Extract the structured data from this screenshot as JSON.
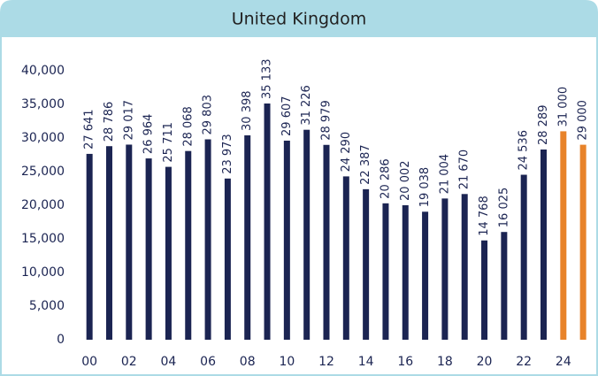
{
  "chart_data": {
    "type": "bar",
    "title": "United Kingdom",
    "categories": [
      "00",
      null,
      "02",
      null,
      "04",
      null,
      "06",
      null,
      "08",
      null,
      "10",
      null,
      "12",
      null,
      "14",
      null,
      "16",
      null,
      "18",
      null,
      "20",
      null,
      "22",
      null,
      "24",
      null
    ],
    "values": [
      27641,
      28786,
      29017,
      26964,
      25711,
      28068,
      29803,
      23973,
      30398,
      35133,
      29607,
      31226,
      28979,
      24290,
      22387,
      20286,
      20002,
      19038,
      21004,
      21670,
      14768,
      16025,
      24536,
      28289,
      31000,
      29000
    ],
    "value_labels": [
      "27 641",
      "28 786",
      "29 017",
      "26 964",
      "25 711",
      "28 068",
      "29 803",
      "23 973",
      "30 398",
      "35 133",
      "29 607",
      "31 226",
      "28 979",
      "24 290",
      "22 387",
      "20 286",
      "20 002",
      "19 038",
      "21 004",
      "21 670",
      "14 768",
      "16 025",
      "24 536",
      "28 289",
      "31 000",
      "29 000"
    ],
    "colors": [
      "#1b2452",
      "#1b2452",
      "#1b2452",
      "#1b2452",
      "#1b2452",
      "#1b2452",
      "#1b2452",
      "#1b2452",
      "#1b2452",
      "#1b2452",
      "#1b2452",
      "#1b2452",
      "#1b2452",
      "#1b2452",
      "#1b2452",
      "#1b2452",
      "#1b2452",
      "#1b2452",
      "#1b2452",
      "#1b2452",
      "#1b2452",
      "#1b2452",
      "#1b2452",
      "#1b2452",
      "#e8832a",
      "#e8832a"
    ],
    "ylim": [
      0,
      40000
    ],
    "yticks": [
      0,
      {
        "value": 5000,
        "label": "5,000"
      },
      {
        "value": 10000,
        "label": "10,000"
      },
      {
        "value": 15000,
        "label": "15,000"
      },
      {
        "value": 20000,
        "label": "20,000"
      },
      {
        "value": 25000,
        "label": "25,000"
      },
      {
        "value": 30000,
        "label": "30,000"
      },
      {
        "value": 35000,
        "label": "35,000"
      },
      {
        "value": 40000,
        "label": "40,000"
      }
    ],
    "grid": false
  }
}
